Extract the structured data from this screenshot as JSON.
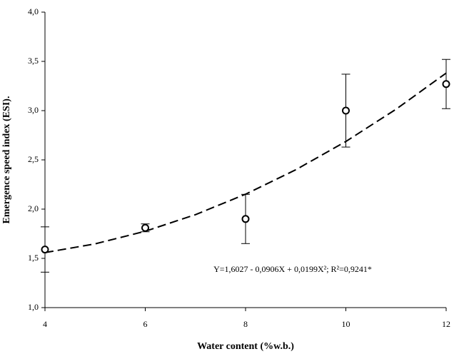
{
  "chart_data": {
    "type": "scatter",
    "xlabel": "Water content (%w.b.)",
    "ylabel": "Emergence speed index (ESI).",
    "annotation": "Y=1,6027 - 0,0906X + 0,0199X²; R²=0,9241*",
    "x": [
      4,
      6,
      8,
      10,
      12
    ],
    "series": [
      {
        "values": [
          1.59,
          1.81,
          1.9,
          3.0,
          3.27
        ],
        "errors": [
          0.23,
          0.04,
          0.25,
          0.37,
          0.25
        ],
        "color": "#000000"
      }
    ],
    "fit": {
      "x": [
        4,
        5,
        6,
        7,
        8,
        9,
        10,
        11,
        12
      ],
      "values": [
        1.5587,
        1.6472,
        1.7755,
        1.9436,
        2.1515,
        2.3992,
        2.6867,
        3.014,
        3.3811
      ],
      "color": "#000000",
      "dashed": true
    },
    "xlim": [
      4,
      12
    ],
    "xticks": [
      4,
      6,
      8,
      10,
      12
    ],
    "ylim": [
      1,
      4
    ],
    "yticks": [
      {
        "value": 1,
        "label": "1,0"
      },
      {
        "value": 1.5,
        "label": "1,5"
      },
      {
        "value": 2,
        "label": "2,0"
      },
      {
        "value": 2.5,
        "label": "2,5"
      },
      {
        "value": 3,
        "label": "3,0"
      },
      {
        "value": 3.5,
        "label": "3,5"
      },
      {
        "value": 4,
        "label": "4,0"
      }
    ]
  }
}
